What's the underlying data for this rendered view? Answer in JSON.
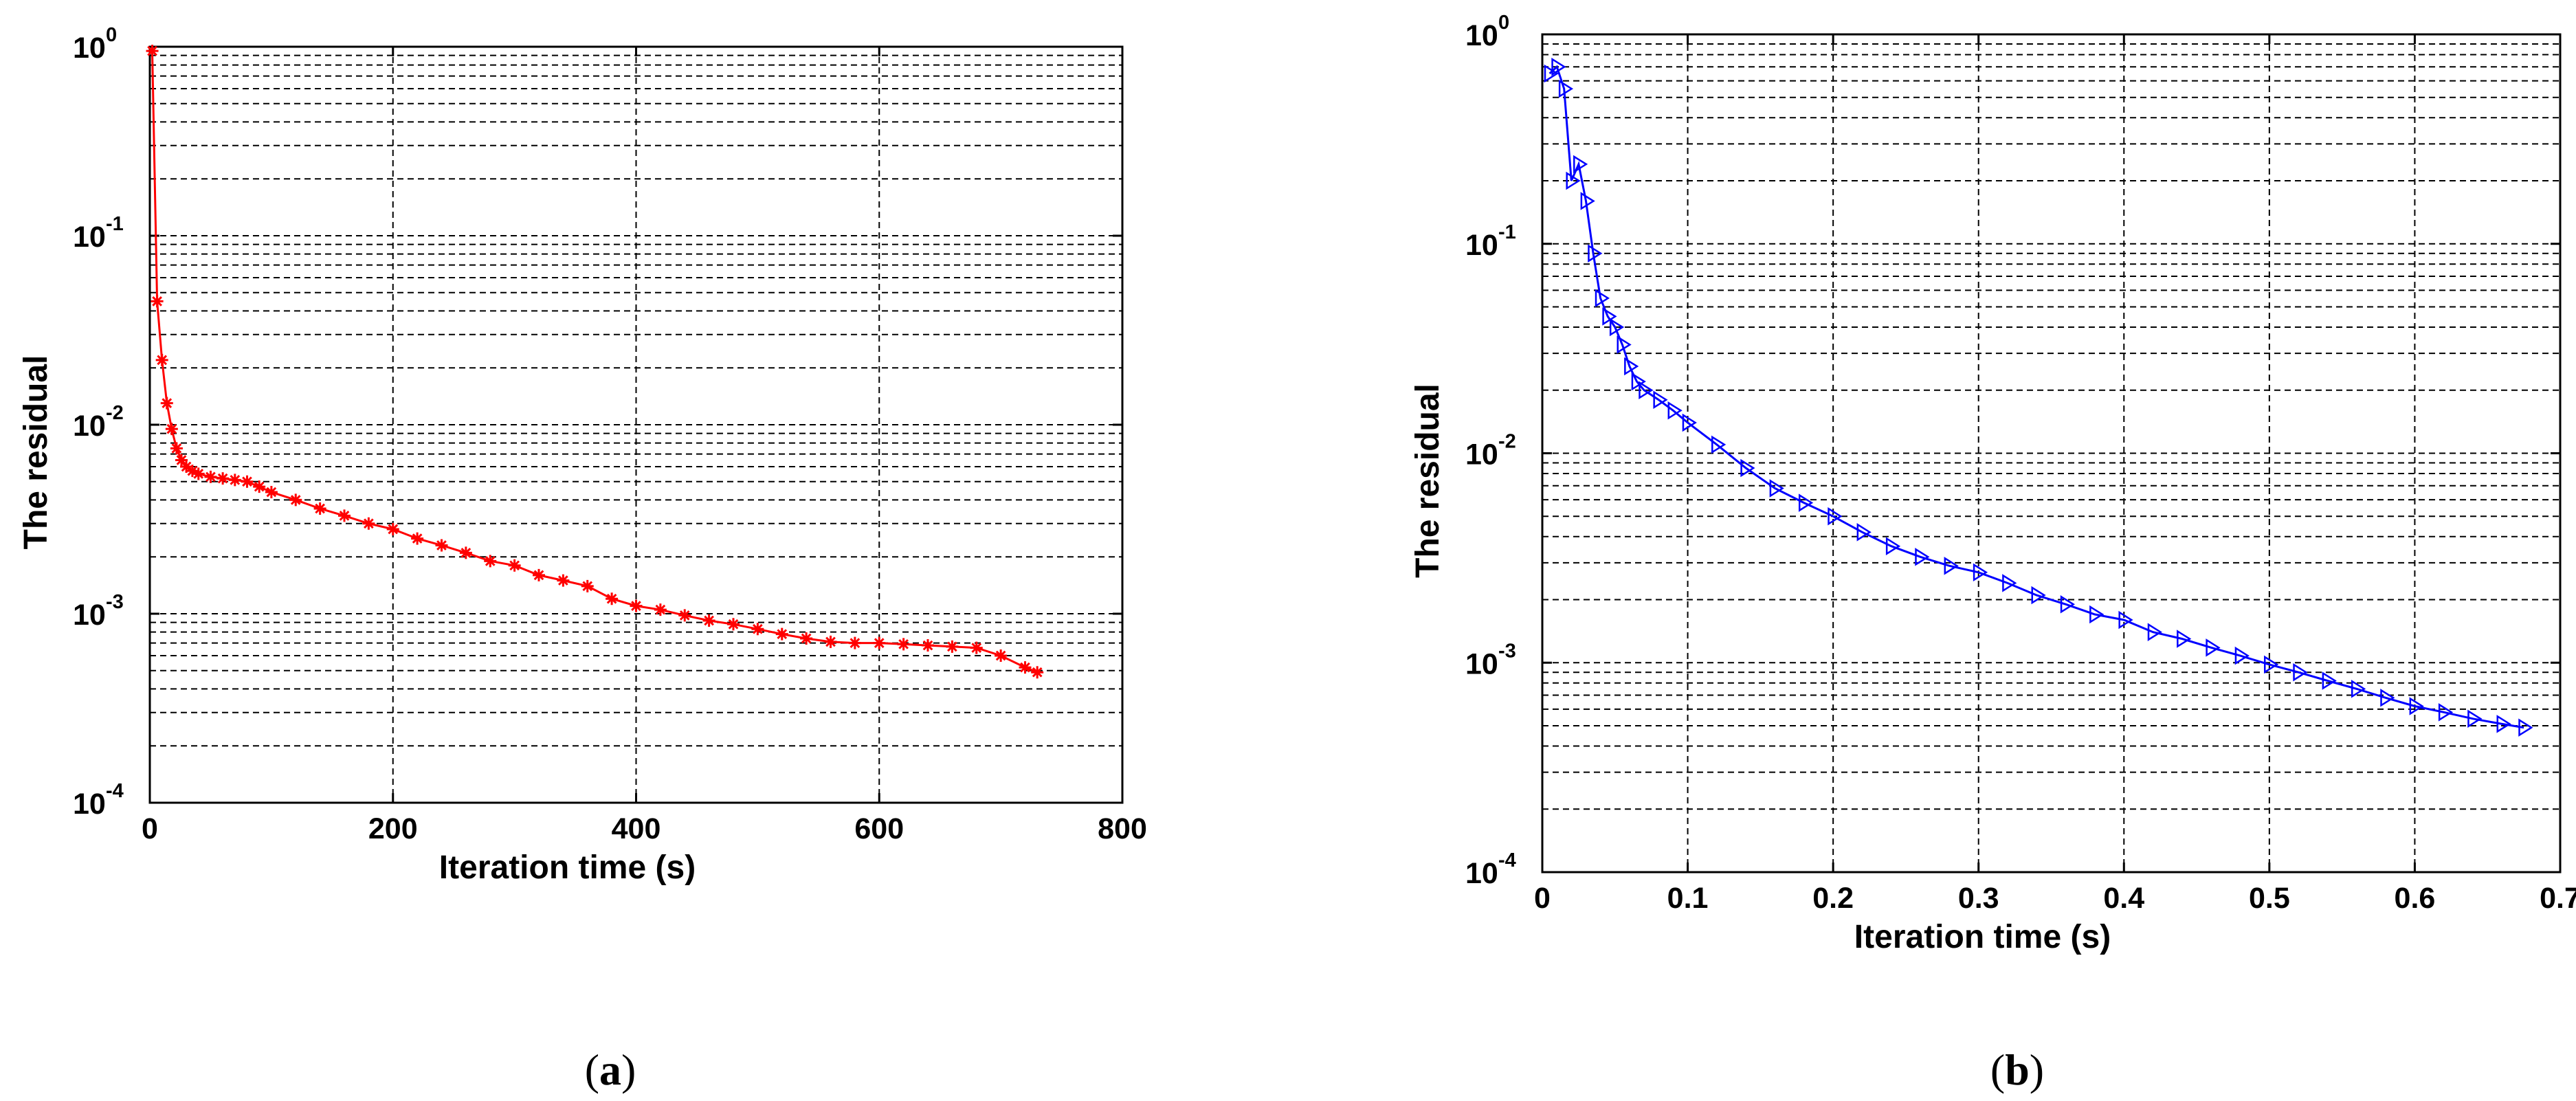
{
  "chart_data": [
    {
      "type": "line",
      "panel_label": "(a)",
      "panel_letter": "a",
      "xlabel": "Iteration time (s)",
      "ylabel": "The residual",
      "xlim": [
        0,
        800
      ],
      "ylim": [
        0.0001,
        1
      ],
      "yscale": "log",
      "grid": true,
      "xticks": [
        0,
        200,
        400,
        600,
        800
      ],
      "xtick_labels": [
        "0",
        "200",
        "400",
        "600",
        "800"
      ],
      "yticks": [
        1,
        0.1,
        0.01,
        0.001,
        0.0001
      ],
      "ytick_exponents": [
        "0",
        "-1",
        "-2",
        "-3",
        "-4"
      ],
      "ytick_base": "10",
      "color": "#ff0000",
      "marker": "asterisk",
      "series": [
        {
          "name": "residual",
          "x": [
            2,
            6,
            10,
            14,
            18,
            22,
            26,
            30,
            35,
            40,
            50,
            60,
            70,
            80,
            90,
            100,
            120,
            140,
            160,
            180,
            200,
            220,
            240,
            260,
            280,
            300,
            320,
            340,
            360,
            380,
            400,
            420,
            440,
            460,
            480,
            500,
            520,
            540,
            560,
            580,
            600,
            620,
            640,
            660,
            680,
            700,
            720,
            730
          ],
          "y": [
            0.95,
            0.045,
            0.022,
            0.013,
            0.0095,
            0.0075,
            0.0065,
            0.006,
            0.0057,
            0.0055,
            0.0053,
            0.0052,
            0.0051,
            0.005,
            0.0047,
            0.0044,
            0.004,
            0.0036,
            0.0033,
            0.003,
            0.0028,
            0.0025,
            0.0023,
            0.0021,
            0.0019,
            0.0018,
            0.0016,
            0.0015,
            0.0014,
            0.0012,
            0.0011,
            0.00105,
            0.00098,
            0.00092,
            0.00088,
            0.00083,
            0.00078,
            0.00074,
            0.00071,
            0.0007,
            0.0007,
            0.00069,
            0.00068,
            0.00067,
            0.00066,
            0.0006,
            0.00052,
            0.00049
          ]
        }
      ]
    },
    {
      "type": "line",
      "panel_label": "(b)",
      "panel_letter": "b",
      "xlabel": "Iteration time (s)",
      "ylabel": "The residual",
      "xlim": [
        0,
        0.7
      ],
      "ylim": [
        0.0001,
        1
      ],
      "yscale": "log",
      "grid": true,
      "xticks": [
        0,
        0.1,
        0.2,
        0.3,
        0.4,
        0.5,
        0.6,
        0.7
      ],
      "xtick_labels": [
        "0",
        "0.1",
        "0.2",
        "0.3",
        "0.4",
        "0.5",
        "0.6",
        "0.7"
      ],
      "yticks": [
        1,
        0.1,
        0.01,
        0.001,
        0.0001
      ],
      "ytick_exponents": [
        "0",
        "-1",
        "-2",
        "-3",
        "-4"
      ],
      "ytick_base": "10",
      "color": "#0000ff",
      "marker": "triangle-right",
      "series": [
        {
          "name": "residual",
          "x": [
            0.005,
            0.01,
            0.015,
            0.02,
            0.025,
            0.03,
            0.035,
            0.04,
            0.045,
            0.05,
            0.055,
            0.06,
            0.065,
            0.07,
            0.08,
            0.09,
            0.1,
            0.12,
            0.14,
            0.16,
            0.18,
            0.2,
            0.22,
            0.24,
            0.26,
            0.28,
            0.3,
            0.32,
            0.34,
            0.36,
            0.38,
            0.4,
            0.42,
            0.44,
            0.46,
            0.48,
            0.5,
            0.52,
            0.54,
            0.56,
            0.58,
            0.6,
            0.62,
            0.64,
            0.66,
            0.675
          ],
          "y": [
            0.65,
            0.7,
            0.55,
            0.2,
            0.24,
            0.16,
            0.09,
            0.055,
            0.045,
            0.04,
            0.033,
            0.026,
            0.022,
            0.02,
            0.018,
            0.016,
            0.014,
            0.011,
            0.0085,
            0.0068,
            0.0058,
            0.005,
            0.0042,
            0.0036,
            0.0032,
            0.0029,
            0.0027,
            0.0024,
            0.0021,
            0.0019,
            0.0017,
            0.0016,
            0.0014,
            0.0013,
            0.00118,
            0.00108,
            0.00098,
            0.0009,
            0.00082,
            0.00075,
            0.00068,
            0.00062,
            0.00058,
            0.00054,
            0.00051,
            0.00049
          ]
        }
      ]
    }
  ]
}
